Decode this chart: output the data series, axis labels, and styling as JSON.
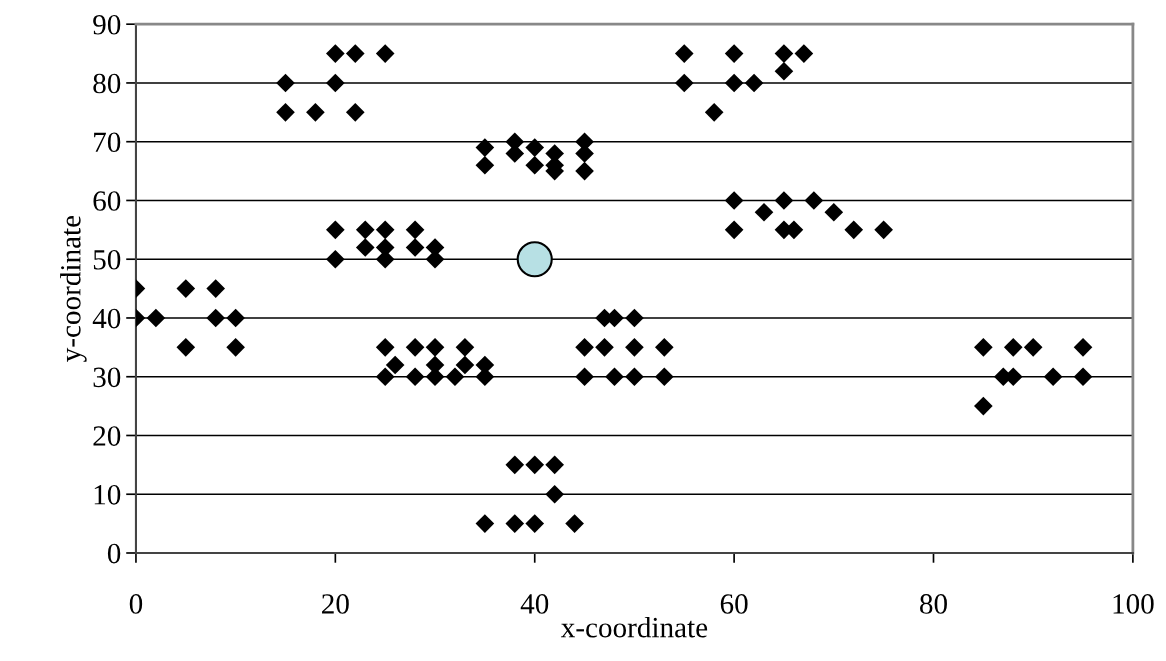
{
  "chart_data": {
    "type": "scatter",
    "xlabel": "x-coordinate",
    "ylabel": "y-coordinate",
    "xlim": [
      0,
      100
    ],
    "ylim": [
      0,
      90
    ],
    "xticks": [
      0,
      20,
      40,
      60,
      80,
      100
    ],
    "yticks": [
      0,
      10,
      20,
      30,
      40,
      50,
      60,
      70,
      80,
      90
    ],
    "grid": "y",
    "legend": false,
    "series": [
      {
        "color": "#000000",
        "marker": "diamond",
        "x": [
          0,
          0,
          2,
          5,
          5,
          8,
          8,
          10,
          10,
          15,
          15,
          18,
          20,
          20,
          22,
          22,
          25,
          20,
          20,
          23,
          23,
          25,
          25,
          25,
          28,
          28,
          30,
          30,
          25,
          25,
          26,
          28,
          28,
          30,
          30,
          30,
          32,
          33,
          33,
          35,
          35,
          35,
          38,
          38,
          40,
          40,
          42,
          42,
          44,
          35,
          35,
          38,
          38,
          40,
          40,
          42,
          42,
          42,
          45,
          45,
          45,
          45,
          45,
          47,
          47,
          48,
          48,
          50,
          50,
          50,
          53,
          53,
          55,
          55,
          58,
          60,
          60,
          62,
          65,
          65,
          67,
          60,
          60,
          63,
          65,
          65,
          66,
          68,
          70,
          72,
          75,
          85,
          85,
          87,
          88,
          88,
          90,
          92,
          95,
          95
        ],
        "values": [
          45,
          40,
          40,
          45,
          35,
          45,
          40,
          40,
          35,
          80,
          75,
          75,
          85,
          80,
          85,
          75,
          85,
          55,
          50,
          55,
          52,
          55,
          52,
          50,
          55,
          52,
          52,
          50,
          35,
          30,
          32,
          35,
          30,
          35,
          32,
          30,
          30,
          35,
          32,
          32,
          30,
          5,
          15,
          5,
          15,
          5,
          15,
          10,
          5,
          69,
          66,
          70,
          68,
          69,
          66,
          68,
          66,
          65,
          70,
          68,
          65,
          35,
          30,
          40,
          35,
          40,
          30,
          40,
          35,
          30,
          35,
          30,
          85,
          80,
          75,
          85,
          80,
          80,
          85,
          82,
          85,
          60,
          55,
          58,
          60,
          55,
          55,
          60,
          58,
          55,
          55,
          35,
          25,
          30,
          35,
          30,
          35,
          30,
          35,
          30
        ]
      },
      {
        "color": "#b7e0e4",
        "marker": "circle",
        "x": [
          40
        ],
        "values": [
          50
        ]
      }
    ]
  }
}
